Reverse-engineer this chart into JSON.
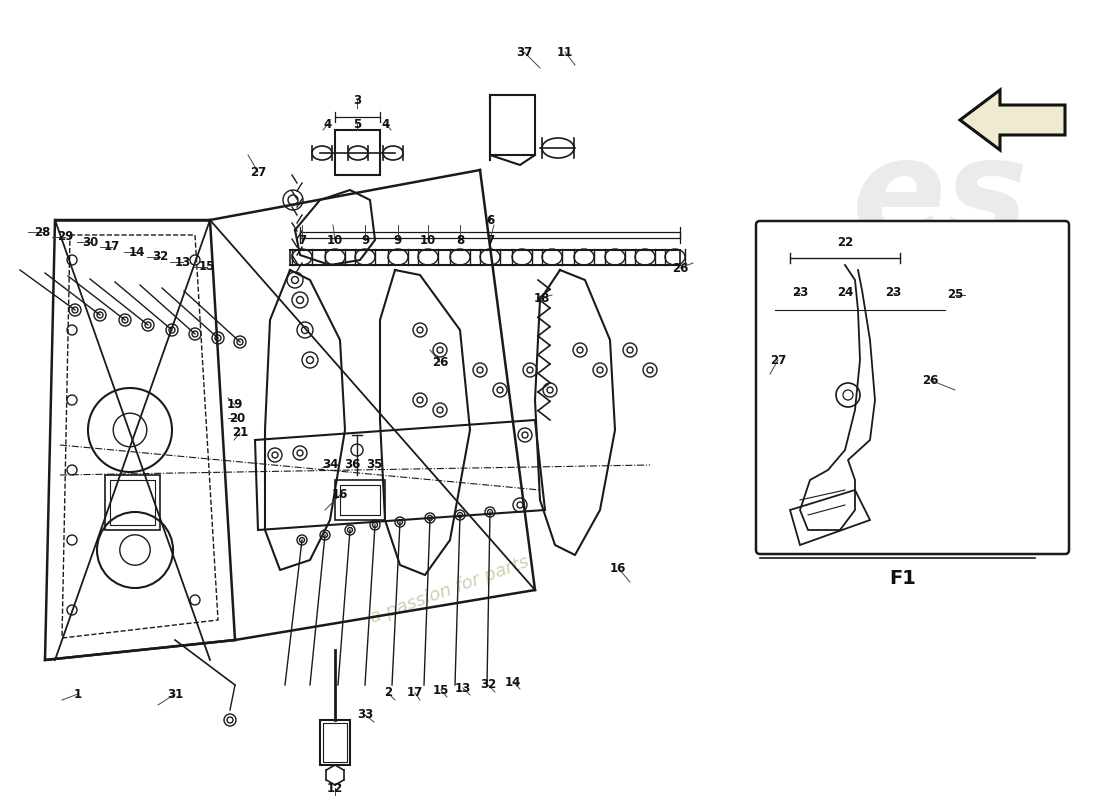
{
  "bg": "#ffffff",
  "lc": "#1a1a1a",
  "wm_color": "#e0dfd0",
  "wm_text": "a passion for parts",
  "brand_color": "#e8e8e8",
  "f1_label": "F1",
  "fig_w": 11.0,
  "fig_h": 8.0
}
